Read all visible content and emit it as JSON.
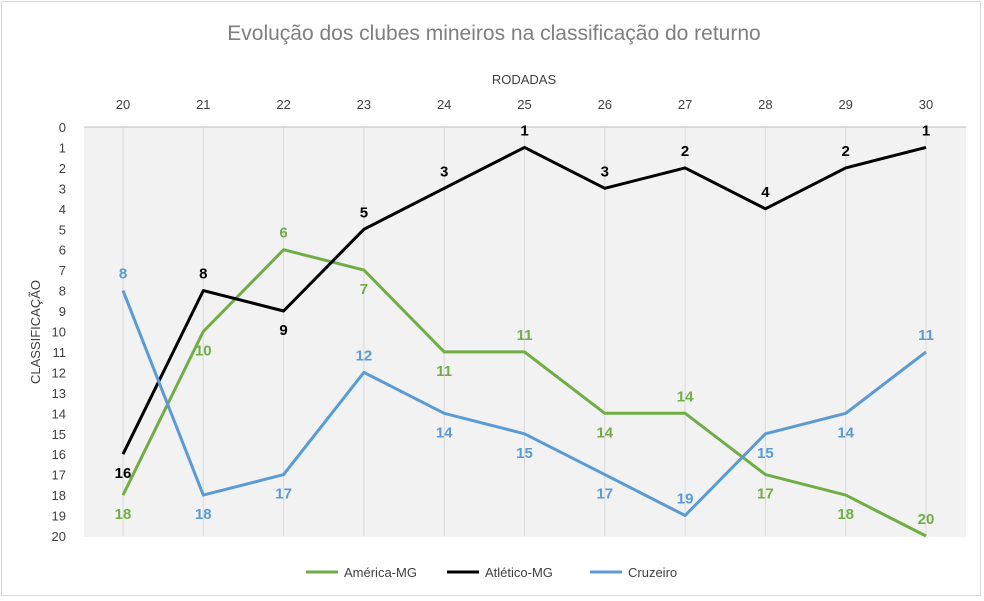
{
  "chart_data": {
    "type": "line",
    "title": "Evolução dos clubes mineiros na classificação do returno",
    "xlabel": "RODADAS",
    "ylabel": "CLASSIFICAÇÃO",
    "x": [
      20,
      21,
      22,
      23,
      24,
      25,
      26,
      27,
      28,
      29,
      30
    ],
    "x_axis_position": "top",
    "y_reversed": true,
    "ylim": [
      0,
      20
    ],
    "yticks": [
      0,
      1,
      2,
      3,
      4,
      5,
      6,
      7,
      8,
      9,
      10,
      11,
      12,
      13,
      14,
      15,
      16,
      17,
      18,
      19,
      20
    ],
    "grid": "vertical",
    "legend_position": "bottom",
    "series": [
      {
        "name": "América-MG",
        "color": "#70ad47",
        "values": [
          18,
          10,
          6,
          7,
          11,
          11,
          14,
          14,
          17,
          18,
          20
        ]
      },
      {
        "name": "Atlético-MG",
        "color": "#000000",
        "values": [
          16,
          8,
          9,
          5,
          3,
          1,
          3,
          2,
          4,
          2,
          1
        ]
      },
      {
        "name": "Cruzeiro",
        "color": "#5b9bd5",
        "values": [
          8,
          18,
          17,
          12,
          14,
          15,
          17,
          19,
          15,
          14,
          11
        ]
      }
    ]
  }
}
